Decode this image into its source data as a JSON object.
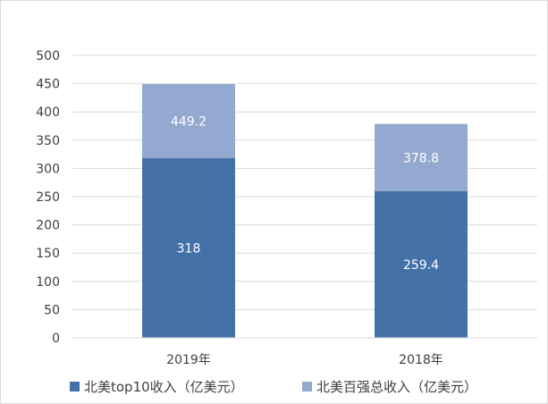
{
  "chart_data": {
    "type": "bar",
    "stacked": false,
    "layout": "overlapped",
    "categories": [
      "2019年",
      "2018年"
    ],
    "series": [
      {
        "name": "北美top10收入（亿美元）",
        "values": [
          318,
          259.4
        ],
        "color": "#4472a8"
      },
      {
        "name": "北美百强总收入（亿美元）",
        "values": [
          449.2,
          378.8
        ],
        "color": "#94a9d0"
      }
    ],
    "data_labels": {
      "series_0": [
        "318",
        "259.4"
      ],
      "series_1": [
        "449.2",
        "378.8"
      ]
    },
    "ylim": [
      0,
      500
    ],
    "yticks": [
      0,
      50,
      100,
      150,
      200,
      250,
      300,
      350,
      400,
      450,
      500
    ],
    "grid": true,
    "legend_position": "bottom"
  }
}
